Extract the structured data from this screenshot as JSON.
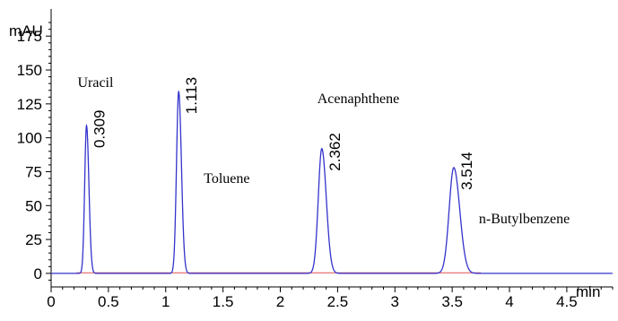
{
  "chart_data": {
    "type": "line",
    "title": "",
    "ylabel": "mAU",
    "xlabel": "min",
    "xlim": [
      0,
      4.9
    ],
    "ylim": [
      -10,
      195
    ],
    "x_ticks": [
      0,
      0.5,
      1,
      1.5,
      2,
      2.5,
      3,
      3.5,
      4,
      4.5
    ],
    "x_tick_labels": [
      "0",
      "0.5",
      "1",
      "1.5",
      "2",
      "2.5",
      "3",
      "3.5",
      "4",
      "4.5"
    ],
    "y_ticks": [
      0,
      25,
      50,
      75,
      100,
      125,
      150,
      175
    ],
    "y_tick_labels": [
      "0",
      "25",
      "50",
      "75",
      "100",
      "125",
      "150",
      "175"
    ],
    "grid": false,
    "line_color": "#3333cc",
    "baseline_color": "#e05050",
    "peaks": [
      {
        "compound": "Uracil",
        "retention_time": 0.309,
        "rt_label": "0.309",
        "height": 109,
        "width": 0.018
      },
      {
        "compound": "Toluene",
        "retention_time": 1.113,
        "rt_label": "1.113",
        "height": 134,
        "width": 0.021
      },
      {
        "compound": "Acenaphthene",
        "retention_time": 2.362,
        "rt_label": "2.362",
        "height": 92,
        "width": 0.034
      },
      {
        "compound": "n-Butylbenzene",
        "retention_time": 3.514,
        "rt_label": "3.514",
        "height": 78,
        "width": 0.045
      }
    ]
  }
}
